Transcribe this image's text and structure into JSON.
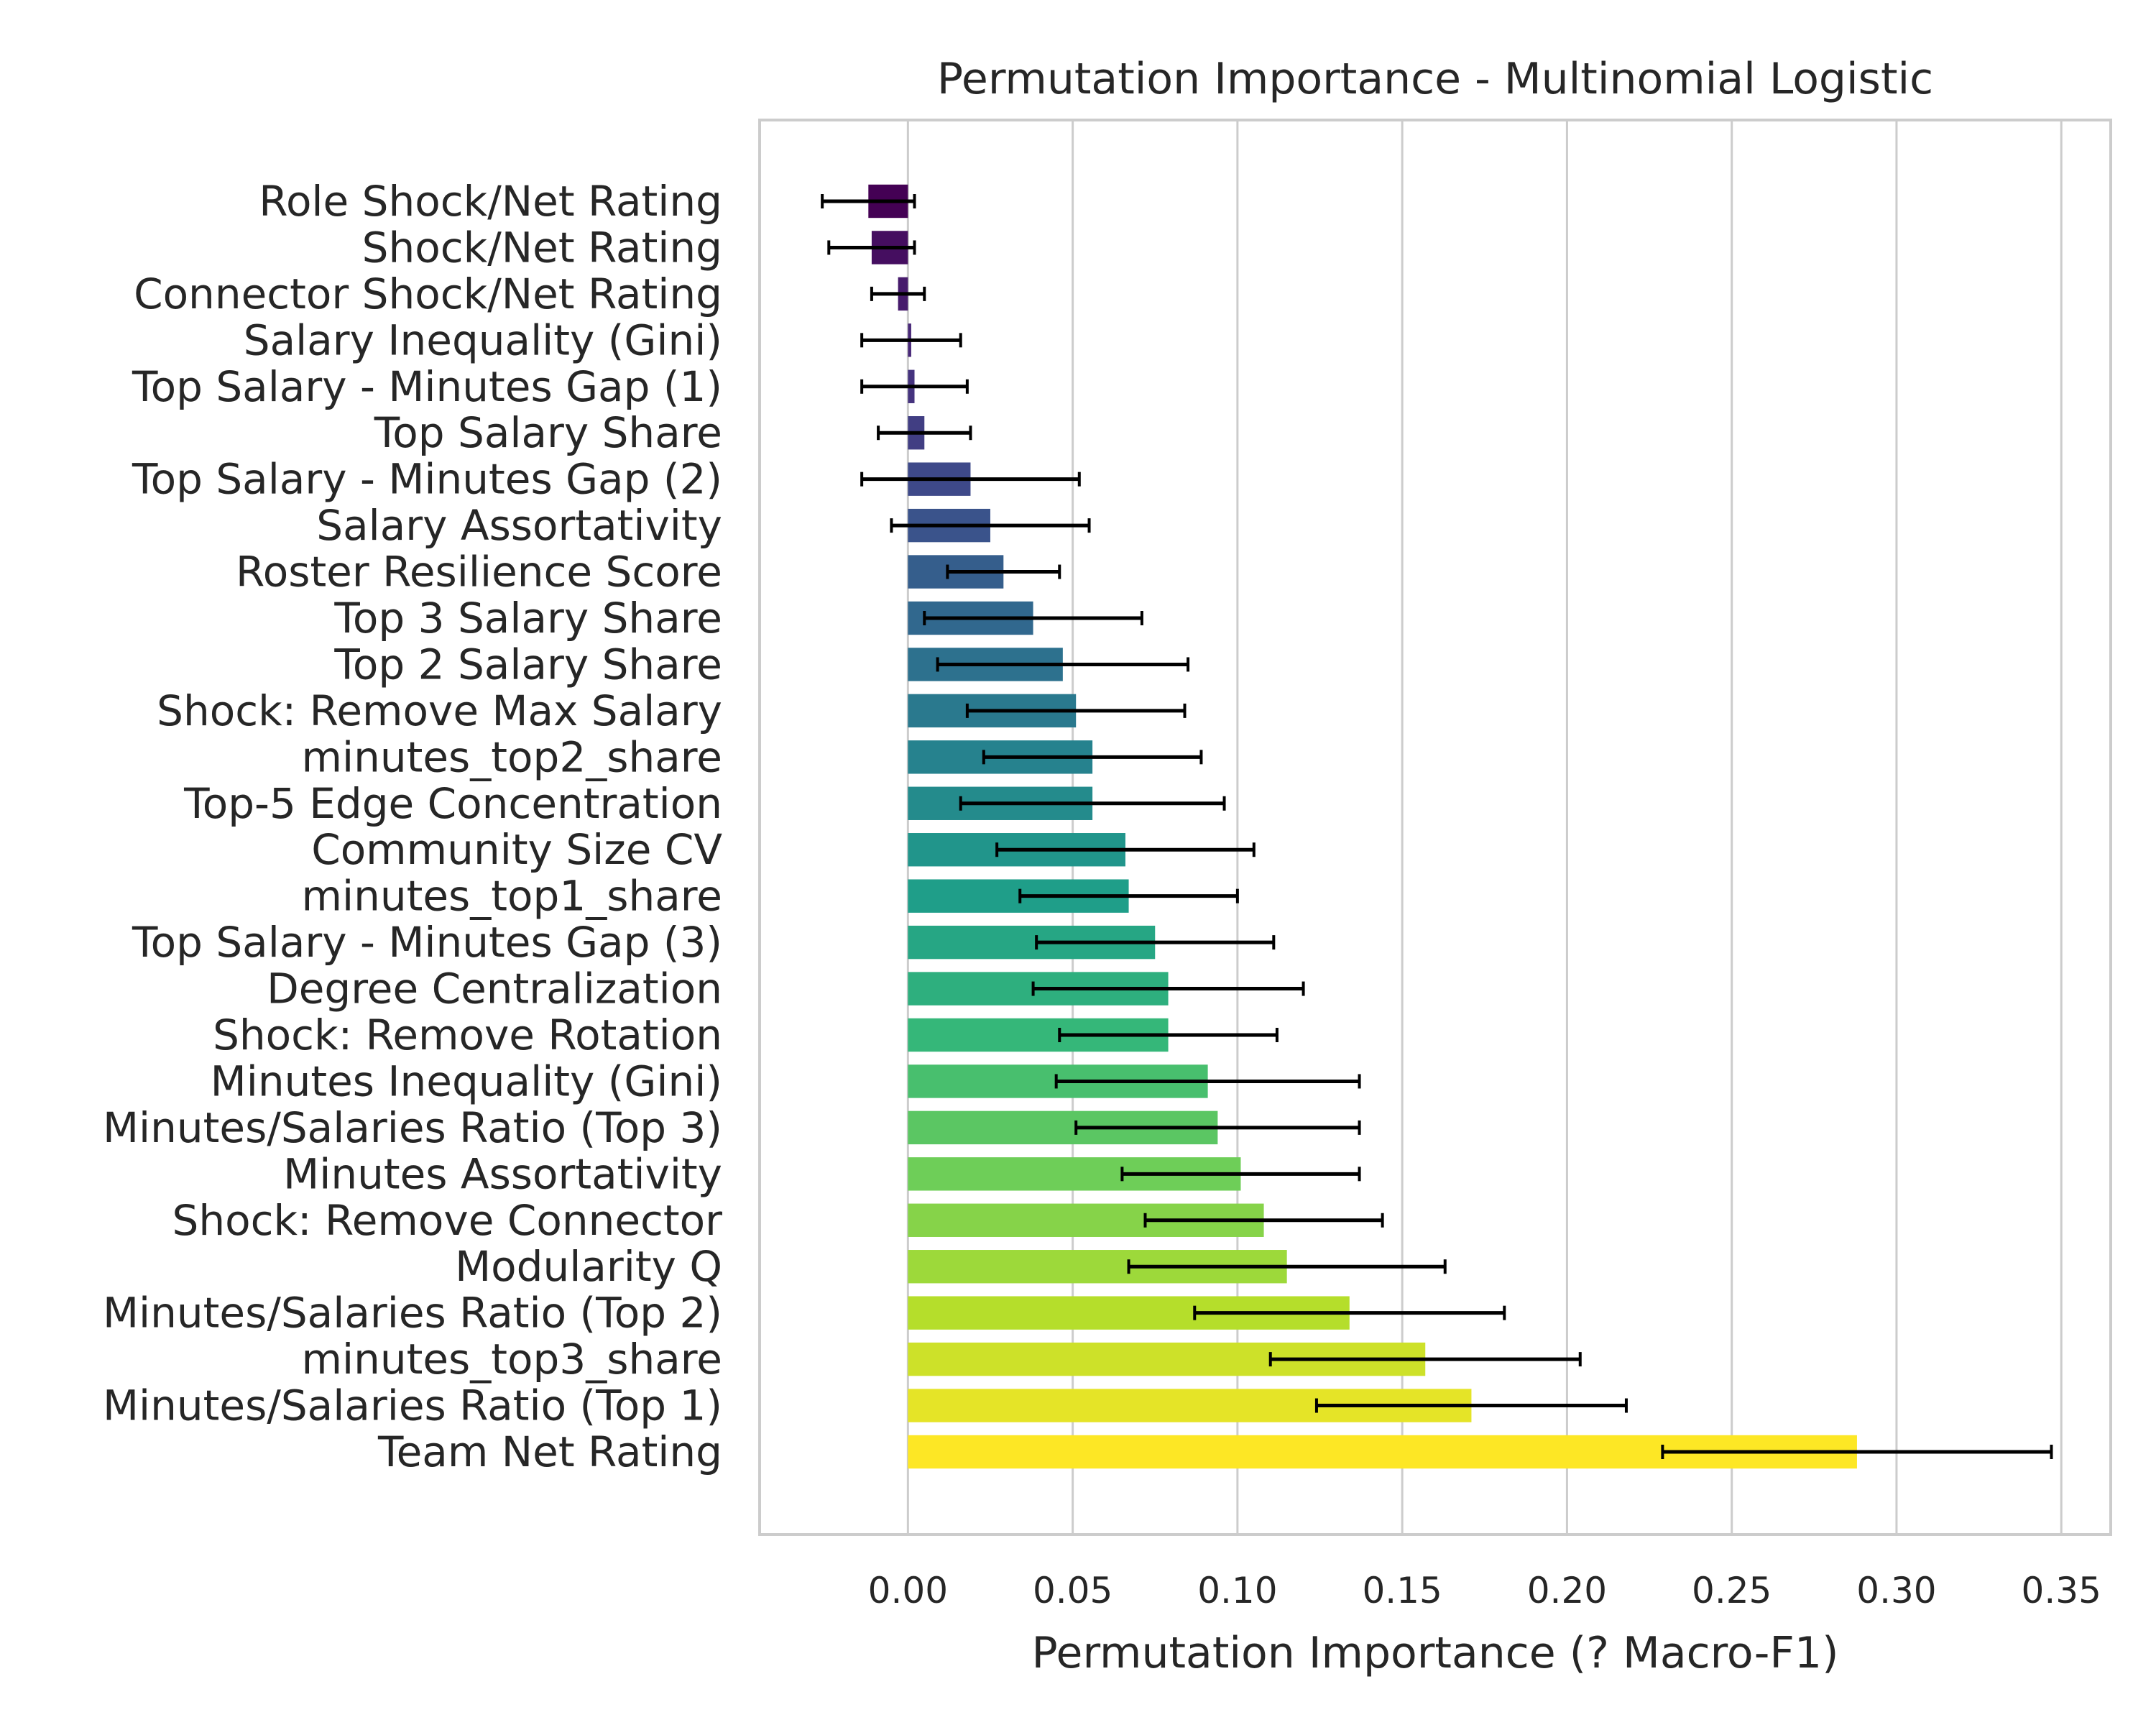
{
  "chart_data": {
    "type": "bar",
    "orientation": "horizontal",
    "title": "Permutation Importance - Multinomial Logistic",
    "xlabel": "Permutation Importance (? Macro-F1)",
    "ylabel": "",
    "xlim": [
      -0.045,
      0.365
    ],
    "xticks": [
      0.0,
      0.05,
      0.1,
      0.15,
      0.2,
      0.25,
      0.3,
      0.35
    ],
    "xtick_labels": [
      "0.00",
      "0.05",
      "0.10",
      "0.15",
      "0.20",
      "0.25",
      "0.30",
      "0.35"
    ],
    "grid": "x",
    "palette": "viridis",
    "color_range": [
      "#440154",
      "#fde725"
    ],
    "error_bar_color": "#000000",
    "categories": [
      "Role Shock/Net Rating",
      "Shock/Net Rating",
      "Connector Shock/Net Rating",
      "Salary Inequality (Gini)",
      "Top Salary - Minutes Gap (1)",
      "Top Salary Share",
      "Top Salary - Minutes Gap (2)",
      "Salary Assortativity",
      "Roster Resilience Score",
      "Top 3 Salary Share",
      "Top 2 Salary Share",
      "Shock: Remove Max Salary",
      "minutes_top2_share",
      "Top-5 Edge Concentration",
      "Community Size CV",
      "minutes_top1_share",
      "Top Salary - Minutes Gap (3)",
      "Degree Centralization",
      "Shock: Remove Rotation",
      "Minutes Inequality (Gini)",
      "Minutes/Salaries Ratio (Top 3)",
      "Minutes Assortativity",
      "Shock: Remove Connector",
      "Modularity Q",
      "Minutes/Salaries Ratio (Top 2)",
      "minutes_top3_share",
      "Minutes/Salaries Ratio (Top 1)",
      "Team Net Rating"
    ],
    "values": [
      -0.012,
      -0.011,
      -0.003,
      0.001,
      0.002,
      0.005,
      0.019,
      0.025,
      0.029,
      0.038,
      0.047,
      0.051,
      0.056,
      0.056,
      0.066,
      0.067,
      0.075,
      0.079,
      0.079,
      0.091,
      0.094,
      0.101,
      0.108,
      0.115,
      0.134,
      0.157,
      0.171,
      0.288
    ],
    "errors": [
      0.014,
      0.013,
      0.008,
      0.015,
      0.016,
      0.014,
      0.033,
      0.03,
      0.017,
      0.033,
      0.038,
      0.033,
      0.033,
      0.04,
      0.039,
      0.033,
      0.036,
      0.041,
      0.033,
      0.046,
      0.043,
      0.036,
      0.036,
      0.048,
      0.047,
      0.047,
      0.047,
      0.059
    ]
  }
}
